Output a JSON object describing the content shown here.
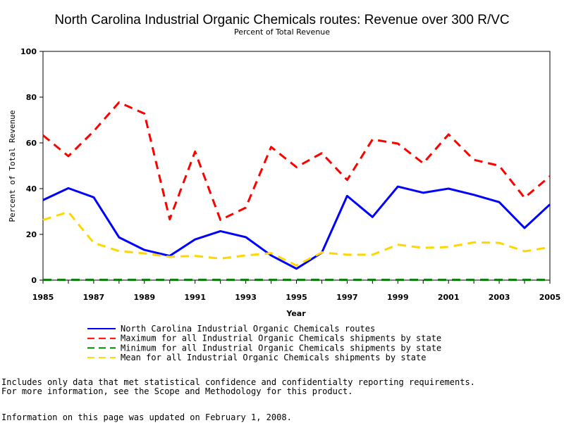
{
  "chart_data": {
    "type": "line",
    "title": "North Carolina Industrial Organic Chemicals routes: Revenue over 300 R/VC",
    "subtitle": "Percent of Total Revenue",
    "xlabel": "Year",
    "ylabel": "Percent of Total Revenue",
    "xlim": [
      1985,
      2005
    ],
    "ylim": [
      0,
      100
    ],
    "x_ticks": [
      "1985",
      "1987",
      "1989",
      "1991",
      "1993",
      "1995",
      "1997",
      "1999",
      "2001",
      "2003",
      "2005"
    ],
    "y_ticks": [
      "0",
      "20",
      "40",
      "60",
      "80",
      "100"
    ],
    "x": [
      1985,
      1986,
      1987,
      1988,
      1989,
      1990,
      1991,
      1992,
      1993,
      1994,
      1995,
      1996,
      1997,
      1998,
      1999,
      2000,
      2001,
      2002,
      2003,
      2004,
      2005
    ],
    "series": [
      {
        "name": "North Carolina Industrial Organic Chemicals routes",
        "color": "#0000ff",
        "style": "solid",
        "values": [
          35,
          40.2,
          36.2,
          18.7,
          13.2,
          10.6,
          17.8,
          21.4,
          18.8,
          10.8,
          5,
          12,
          36.8,
          27.6,
          40.9,
          38.2,
          40,
          37.3,
          34.1,
          22.8,
          33.1
        ]
      },
      {
        "name": "Maximum for all Industrial Organic Chemicals shipments by state",
        "color": "#ff0000",
        "style": "dashed",
        "values": [
          63.3,
          54.2,
          65.1,
          77.7,
          72.8,
          26.6,
          56.2,
          26.3,
          31.7,
          58.2,
          49.4,
          55.5,
          43.8,
          61.5,
          59.7,
          51.1,
          63.7,
          52.6,
          50,
          36,
          45.4
        ]
      },
      {
        "name": "Minimum for all Industrial Organic Chemicals shipments by state",
        "color": "#008000",
        "style": "dashed",
        "values": [
          0.1,
          0.1,
          0.1,
          0.1,
          0.1,
          0.1,
          0.1,
          0.1,
          0.1,
          0.1,
          0.1,
          0.1,
          0.1,
          0.1,
          0.1,
          0.1,
          0.1,
          0.1,
          0.1,
          0.1,
          0.1
        ]
      },
      {
        "name": "Mean for all Industrial Organic Chemicals shipments by state",
        "color": "#ffd700",
        "style": "dashed",
        "values": [
          26.3,
          29.8,
          16.3,
          12.7,
          11.7,
          10.2,
          10.6,
          9.4,
          10.8,
          11.8,
          6.4,
          12.1,
          11.1,
          11.1,
          15.5,
          14.1,
          14.5,
          16.5,
          16.3,
          12.6,
          14.4
        ]
      }
    ],
    "grid": false,
    "legend": "bottom"
  },
  "footnote": {
    "line1": "Includes only data that met statistical confidence and confidentialty reporting requirements.",
    "line2": "For more information, see the Scope and Methodology for this product.",
    "updated": "Information on this page was updated on February 1, 2008."
  }
}
